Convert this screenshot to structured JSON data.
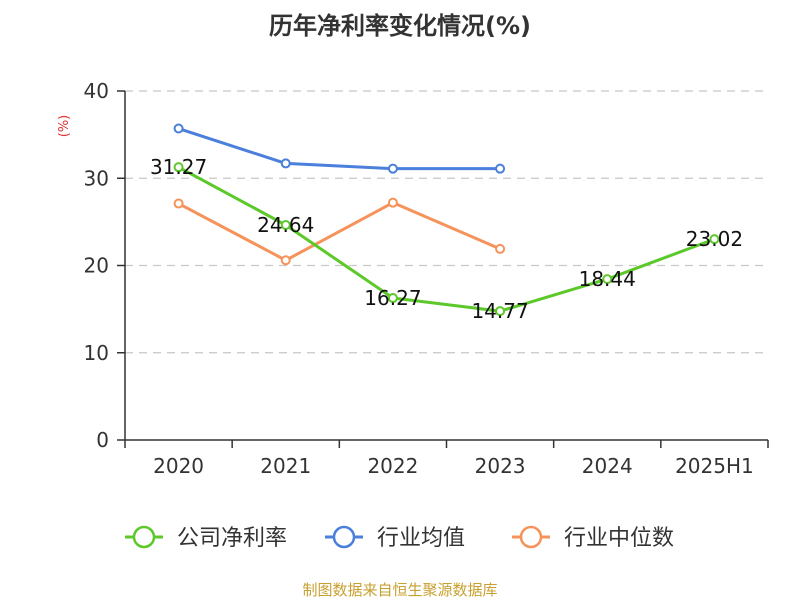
{
  "chart_data": {
    "type": "line",
    "title": "历年净利率变化情况(%)",
    "ylabel": "(%)",
    "xlabel": "",
    "categories": [
      "2020",
      "2021",
      "2022",
      "2023",
      "2024",
      "2025H1"
    ],
    "ylim": [
      0,
      40
    ],
    "yticks": [
      0,
      10,
      20,
      30,
      40
    ],
    "grid": true,
    "legend_position": "bottom",
    "series": [
      {
        "name": "公司净利率",
        "color": "#5cc82a",
        "values": [
          31.27,
          24.64,
          16.27,
          14.77,
          18.44,
          23.02
        ],
        "show_labels": true
      },
      {
        "name": "行业均值",
        "color": "#4a7fdc",
        "values": [
          35.7,
          31.7,
          31.1,
          31.1,
          null,
          null
        ],
        "show_labels": false
      },
      {
        "name": "行业中位数",
        "color": "#f5935a",
        "values": [
          27.1,
          20.6,
          27.2,
          21.9,
          null,
          null
        ],
        "show_labels": false
      }
    ]
  },
  "source": "制图数据来自恒生聚源数据库"
}
